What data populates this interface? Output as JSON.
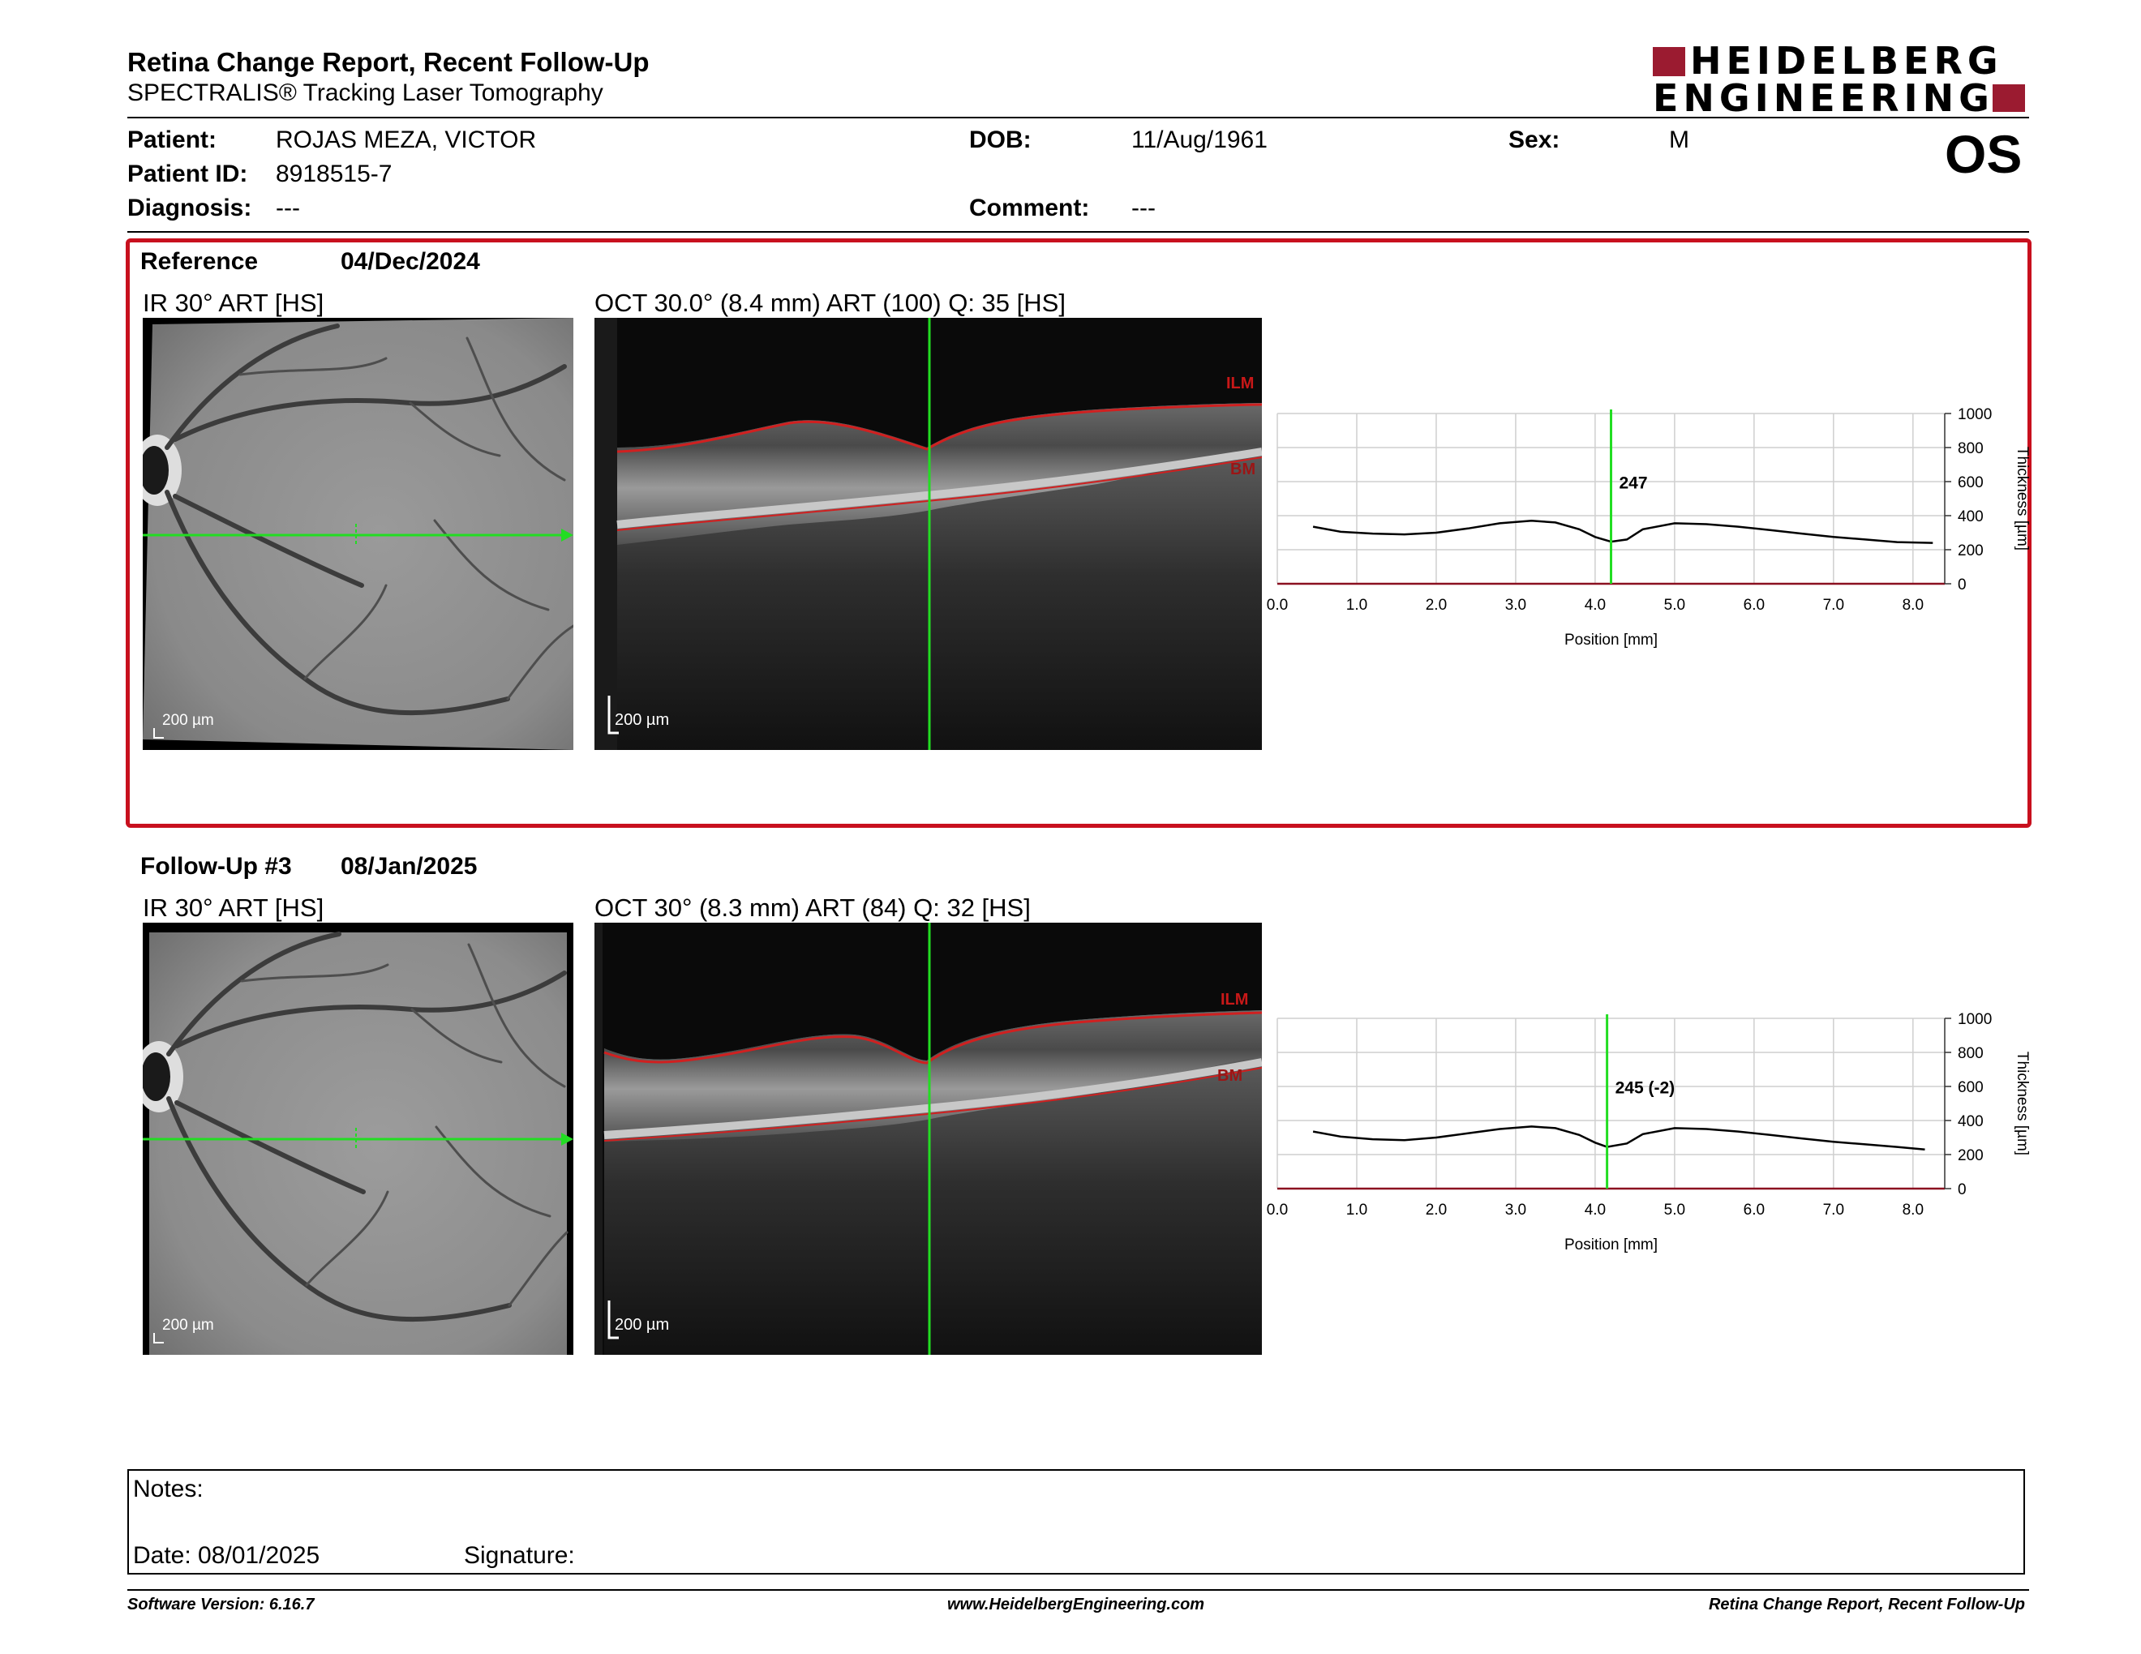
{
  "header": {
    "title": "Retina Change Report, Recent Follow-Up",
    "subtitle": "SPECTRALIS® Tracking Laser Tomography",
    "logo_line1": "HEIDELBERG",
    "logo_line2": "ENGINEERING",
    "eye": "OS"
  },
  "patient": {
    "patient_label": "Patient:",
    "patient_value": "ROJAS MEZA, VICTOR",
    "id_label": "Patient ID:",
    "id_value": "8918515-7",
    "diagnosis_label": "Diagnosis:",
    "diagnosis_value": "---",
    "dob_label": "DOB:",
    "dob_value": "11/Aug/1961",
    "comment_label": "Comment:",
    "comment_value": "---",
    "sex_label": "Sex:",
    "sex_value": "M"
  },
  "reference": {
    "label": "Reference",
    "date": "04/Dec/2024",
    "ir_title": "IR 30° ART [HS]",
    "oct_title": "OCT 30.0° (8.4 mm) ART (100) Q: 35 [HS]",
    "ir_scale": "200 µm",
    "oct_scale": "200 µm",
    "ilm": "ILM",
    "bm": "BM"
  },
  "followup": {
    "label": "Follow-Up #3",
    "date": "08/Jan/2025",
    "ir_title": "IR 30° ART [HS]",
    "oct_title": "OCT 30° (8.3 mm) ART (84) Q: 32 [HS]",
    "ir_scale": "200 µm",
    "oct_scale": "200 µm",
    "ilm": "ILM",
    "bm": "BM"
  },
  "chart_data": [
    {
      "type": "line",
      "xlabel": "Position [mm]",
      "ylabel": "Thickness [µm]",
      "xlim": [
        0.0,
        8.4
      ],
      "ylim": [
        0,
        1000
      ],
      "x_ticks": [
        "0.0",
        "1.0",
        "2.0",
        "3.0",
        "4.0",
        "5.0",
        "6.0",
        "7.0",
        "8.0"
      ],
      "y_ticks": [
        "0",
        "200",
        "400",
        "600",
        "800",
        "1000"
      ],
      "marker_x": 4.2,
      "marker_label": "247",
      "x": [
        0.45,
        0.8,
        1.2,
        1.6,
        2.0,
        2.4,
        2.8,
        3.2,
        3.5,
        3.8,
        4.0,
        4.2,
        4.4,
        4.6,
        5.0,
        5.4,
        5.8,
        6.2,
        6.6,
        7.0,
        7.4,
        7.8,
        8.25
      ],
      "y": [
        335,
        305,
        295,
        290,
        300,
        325,
        355,
        370,
        360,
        320,
        275,
        247,
        260,
        320,
        355,
        350,
        335,
        315,
        295,
        275,
        260,
        245,
        240
      ]
    },
    {
      "type": "line",
      "xlabel": "Position [mm]",
      "ylabel": "Thickness [µm]",
      "xlim": [
        0.0,
        8.4
      ],
      "ylim": [
        0,
        1000
      ],
      "x_ticks": [
        "0.0",
        "1.0",
        "2.0",
        "3.0",
        "4.0",
        "5.0",
        "6.0",
        "7.0",
        "8.0"
      ],
      "y_ticks": [
        "0",
        "200",
        "400",
        "600",
        "800",
        "1000"
      ],
      "marker_x": 4.15,
      "marker_label": "245 (-2)",
      "x": [
        0.45,
        0.8,
        1.2,
        1.6,
        2.0,
        2.4,
        2.8,
        3.2,
        3.5,
        3.8,
        4.0,
        4.15,
        4.4,
        4.6,
        5.0,
        5.4,
        5.8,
        6.2,
        6.6,
        7.0,
        7.4,
        7.8,
        8.15
      ],
      "y": [
        335,
        305,
        290,
        285,
        300,
        325,
        350,
        365,
        355,
        315,
        270,
        245,
        265,
        320,
        355,
        350,
        335,
        315,
        295,
        275,
        260,
        245,
        230
      ]
    }
  ],
  "notes": {
    "label": "Notes:",
    "date": "Date: 08/01/2025",
    "signature": "Signature:"
  },
  "footer": {
    "software": "Software Version: 6.16.7",
    "website": "www.HeidelbergEngineering.com",
    "report": "Retina Change Report, Recent Follow-Up"
  }
}
